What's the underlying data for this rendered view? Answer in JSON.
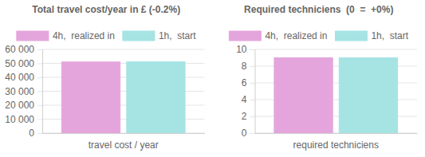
{
  "chart_data": [
    {
      "type": "bar",
      "title": "Total travel cost/year in £ (-0.2%)",
      "categories": [
        "travel cost / year"
      ],
      "series": [
        {
          "name": "4h,  realized in",
          "color": "#e4a5dc",
          "values": [
            51000
          ]
        },
        {
          "name": "1h,  start",
          "color": "#a6e3e3",
          "values": [
            51100
          ]
        }
      ],
      "ylim": [
        0,
        60000
      ],
      "yticks": [
        0,
        {
          "value": 10000,
          "label": "10 000"
        },
        {
          "value": 20000,
          "label": "20 000"
        },
        {
          "value": 30000,
          "label": "30 000"
        },
        {
          "value": 40000,
          "label": "40 000"
        },
        {
          "value": 50000,
          "label": "50 000"
        },
        {
          "value": 60000,
          "label": "60 000"
        }
      ],
      "grid": true,
      "legend": "top"
    },
    {
      "type": "bar",
      "title": "Required techniciens  (0  =  +0%)",
      "categories": [
        "required techniciens"
      ],
      "series": [
        {
          "name": "4h,  realized in",
          "color": "#e4a5dc",
          "values": [
            9
          ]
        },
        {
          "name": "1h,  start",
          "color": "#a6e3e3",
          "values": [
            9
          ]
        }
      ],
      "ylim": [
        0,
        10
      ],
      "yticks": [
        0,
        2,
        4,
        6,
        8,
        10
      ],
      "grid": true,
      "legend": "top"
    }
  ]
}
